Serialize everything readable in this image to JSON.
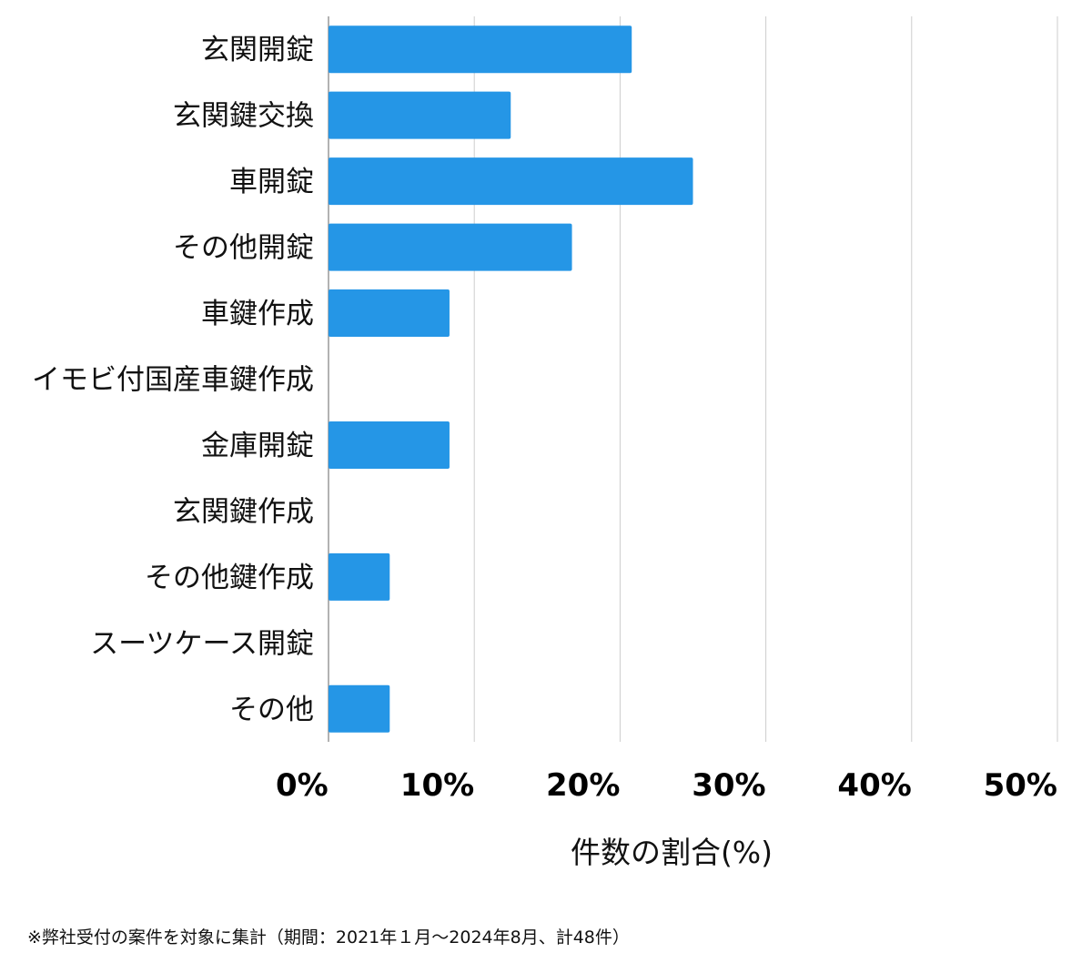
{
  "chart_data": {
    "type": "bar",
    "orientation": "horizontal",
    "categories": [
      "玄関開錠",
      "玄関鍵交換",
      "車開錠",
      "その他開錠",
      "車鍵作成",
      "イモビ付国産車鍵作成",
      "金庫開錠",
      "玄関鍵作成",
      "その他鍵作成",
      "スーツケース開錠",
      "その他"
    ],
    "values": [
      20.8,
      12.5,
      25.0,
      16.7,
      8.3,
      0,
      8.3,
      0,
      4.2,
      0,
      4.2
    ],
    "xlim": [
      0,
      50
    ],
    "xticks": [
      0,
      10,
      20,
      30,
      40,
      50
    ],
    "tick_labels": [
      "0%",
      "10%",
      "20%",
      "30%",
      "40%",
      "50%"
    ],
    "xlabel": "件数の割合(%)",
    "ylabel": "",
    "title": "",
    "grid": "vertical",
    "bar_color": "#2596e6",
    "grid_color": "#cccccc"
  },
  "footnote": "※弊社受付の案件を対象に集計（期間：2021年１月〜2024年8月、計48件）"
}
